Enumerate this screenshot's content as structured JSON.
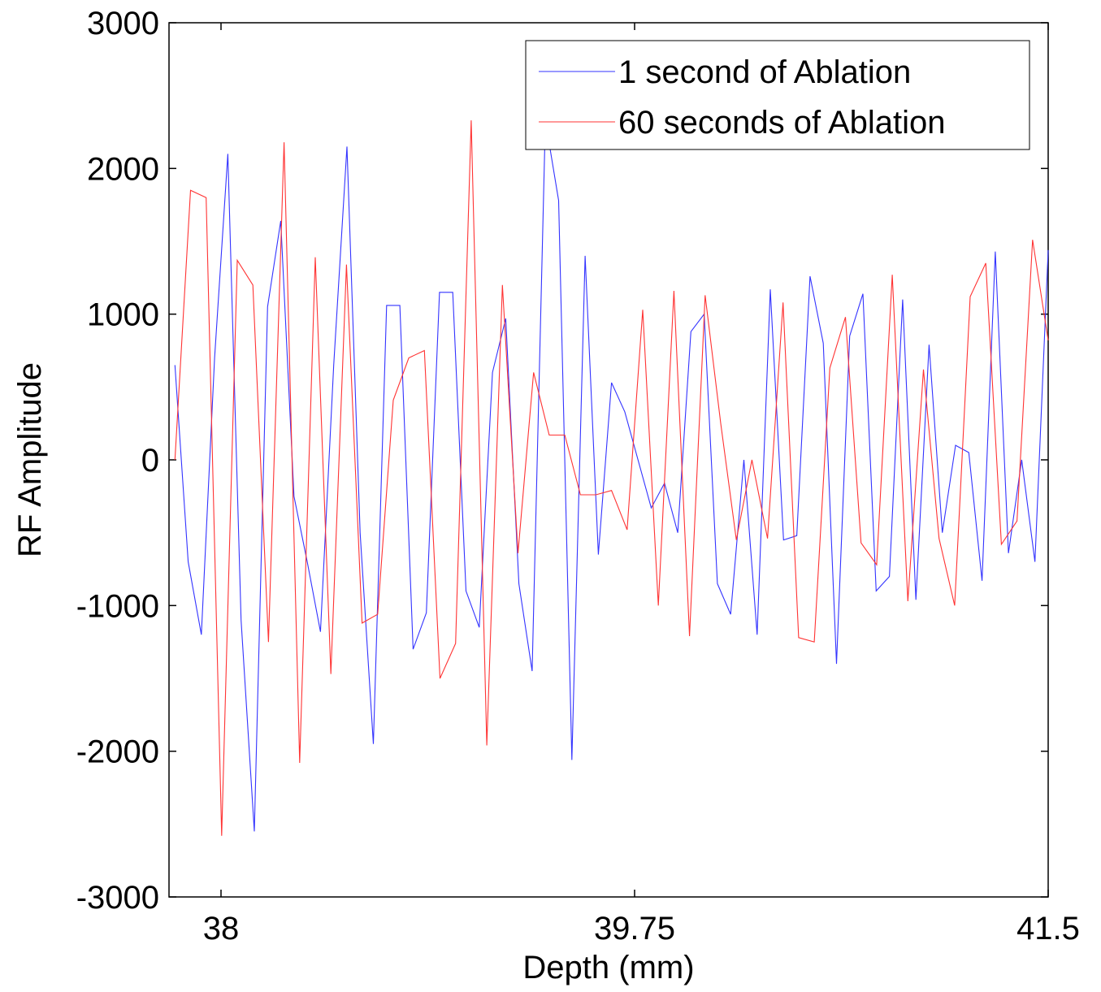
{
  "chart_data": {
    "type": "line",
    "title": "",
    "xlabel": "Depth (mm)",
    "ylabel": "RF Amplitude",
    "xlim": [
      37.78,
      41.5
    ],
    "ylim": [
      -3000,
      3000
    ],
    "x_ticks": [
      38,
      39.75,
      41.5
    ],
    "x_tick_labels": [
      "38",
      "39.75",
      "41.5"
    ],
    "y_ticks": [
      -3000,
      -2000,
      -1000,
      0,
      1000,
      2000,
      3000
    ],
    "y_tick_labels": [
      "-3000",
      "-2000",
      "-1000",
      "0",
      "1000",
      "2000",
      "3000"
    ],
    "grid": false,
    "legend_position": "top-right",
    "x_start": 37.805,
    "x_step": 0.0325,
    "series": [
      {
        "name": "1 second of Ablation",
        "color": "#3333ff",
        "values": [
          650,
          -700,
          -1200,
          700,
          2100,
          -1100,
          -2550,
          1050,
          1640,
          -250,
          -700,
          -1180,
          650,
          2150,
          -500,
          -1950,
          1060,
          1060,
          -1300,
          -1050,
          1150,
          1150,
          -900,
          -1150,
          600,
          970,
          -850,
          -1450,
          2330,
          1780,
          -2060,
          1400,
          -650,
          530,
          330,
          0,
          -330,
          -160,
          -500,
          880,
          1000,
          -850,
          -1060,
          0,
          -1200,
          1170,
          -550,
          -520,
          1260,
          800,
          -1400,
          850,
          1140,
          -900,
          -800,
          1100,
          -960,
          790,
          -500,
          100,
          50,
          -830,
          1430,
          -640,
          0,
          -700,
          1440
        ],
        "values_tail": []
      },
      {
        "name": "60 seconds of Ablation",
        "color": "#ff3333",
        "values": [
          0,
          1850,
          1800,
          -2580,
          1370,
          1200,
          -1250,
          2180,
          -2080,
          1390,
          -1470,
          1340,
          -1120,
          -1060,
          410,
          700,
          750,
          -1500,
          -1260,
          2330,
          -1960,
          1200,
          -640,
          600,
          170,
          170,
          -240,
          -240,
          -210,
          -480,
          1030,
          -1000,
          1160,
          -1210,
          1130,
          250,
          -550,
          0,
          -540,
          1080,
          -1220,
          -1250,
          630,
          980,
          -570,
          -720,
          1270,
          -970,
          620,
          -540,
          -1000,
          1120,
          1350,
          -580,
          -420,
          1510,
          820
        ],
        "values_tail": []
      }
    ]
  }
}
